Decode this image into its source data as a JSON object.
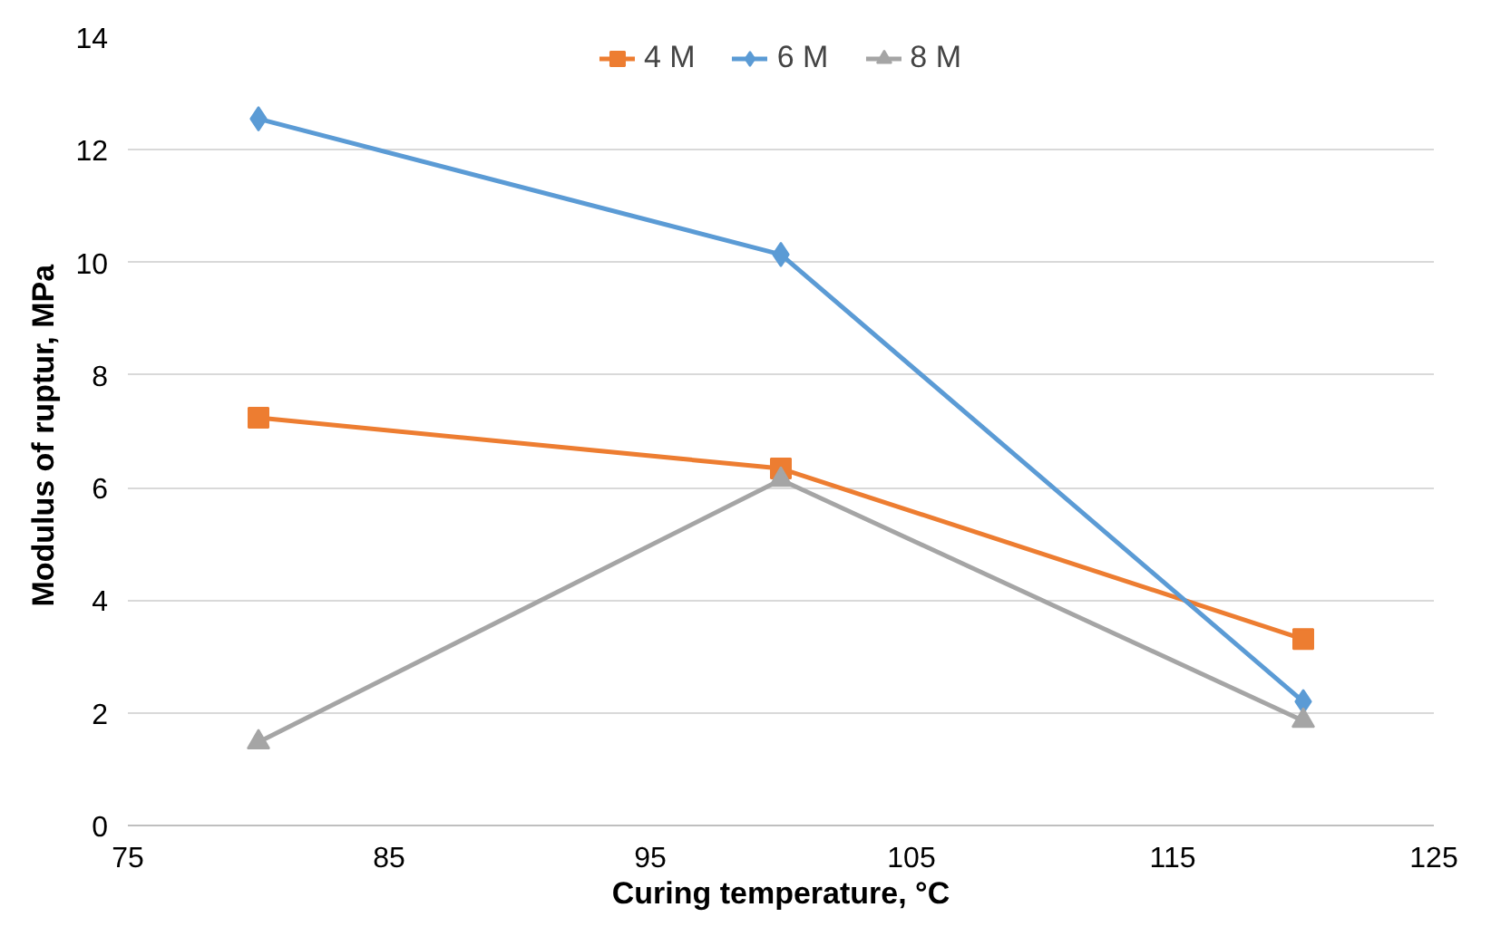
{
  "chart_data": {
    "type": "line",
    "xlabel": "Curing temperature, °C",
    "ylabel": "Modulus  of ruptur, MPa",
    "x": [
      80,
      100,
      120
    ],
    "series": [
      {
        "name": "4 M",
        "color": "#ed7d31",
        "marker": "square",
        "values": [
          7.24,
          6.34,
          3.31
        ]
      },
      {
        "name": "6 M",
        "color": "#5b9bd5",
        "marker": "diamond",
        "values": [
          12.55,
          10.14,
          2.2
        ]
      },
      {
        "name": "8 M",
        "color": "#a5a5a5",
        "marker": "triangle",
        "values": [
          1.48,
          6.14,
          1.86
        ]
      }
    ],
    "xlim": [
      75,
      125
    ],
    "xticks": [
      75,
      85,
      95,
      105,
      115,
      125
    ],
    "ylim": [
      0,
      14
    ],
    "yticks": [
      0,
      2,
      4,
      6,
      8,
      10,
      12,
      14
    ],
    "grid": "y",
    "legend": "top"
  }
}
